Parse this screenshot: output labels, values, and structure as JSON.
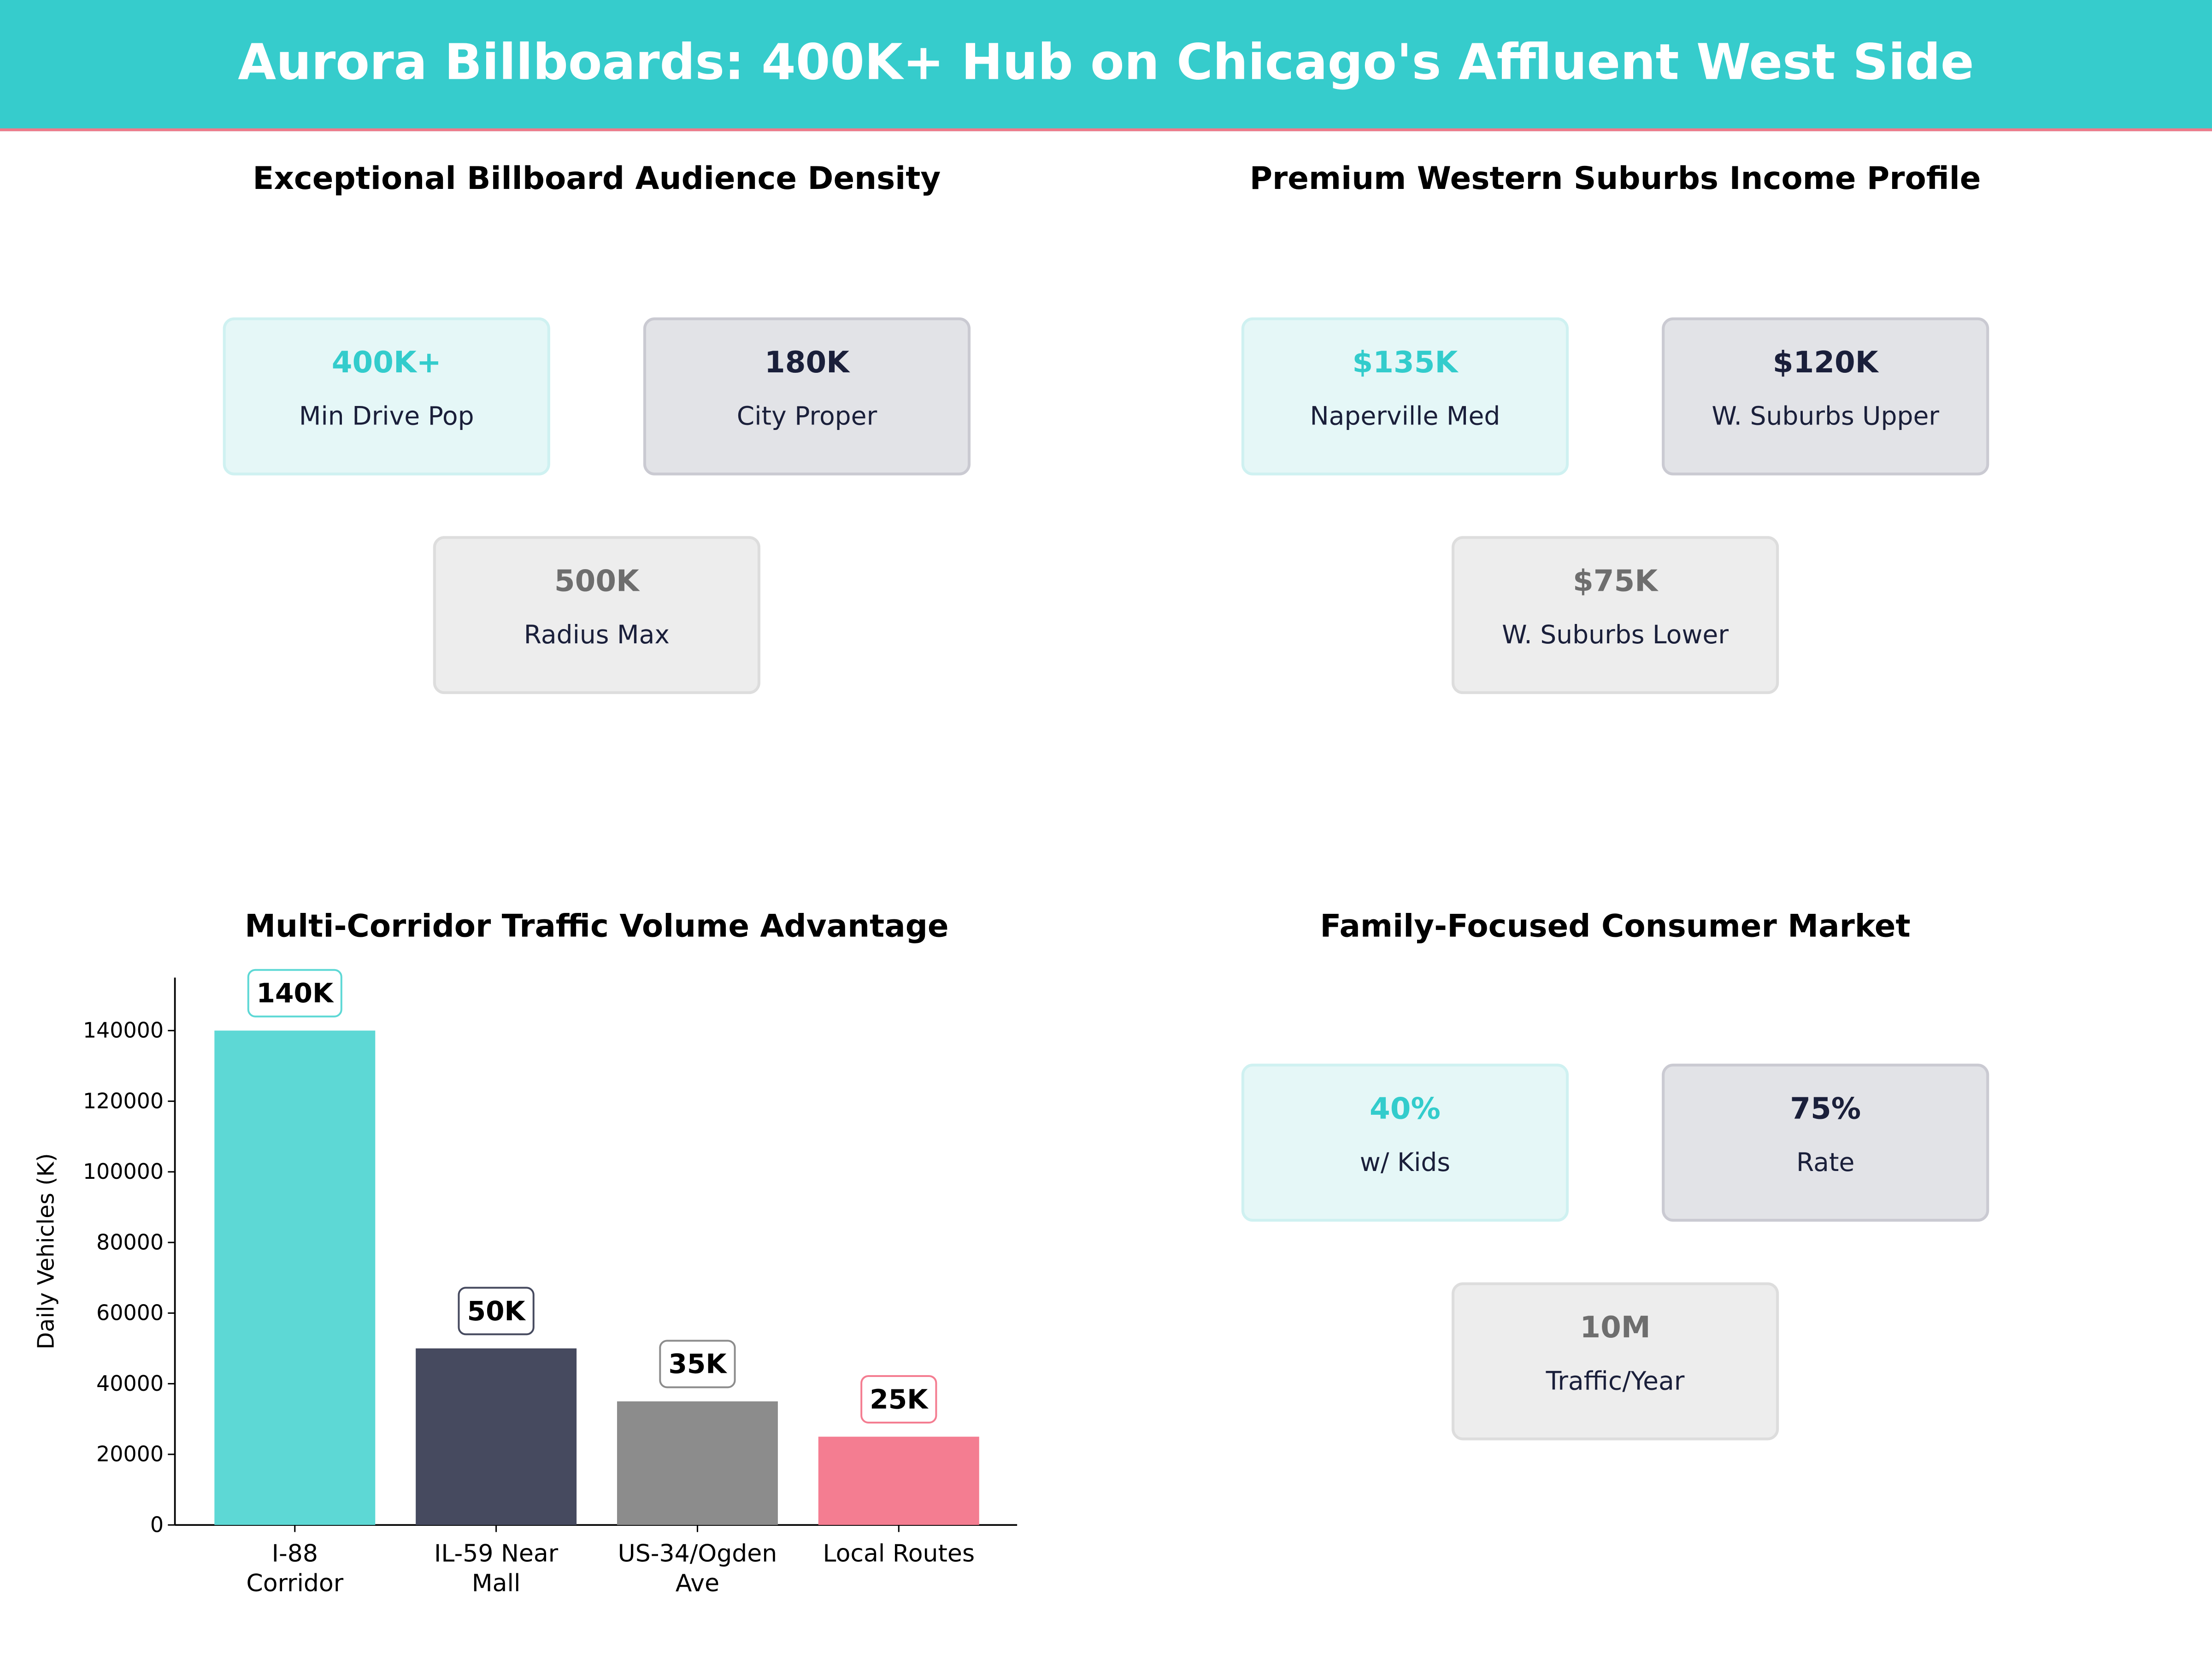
{
  "header": {
    "title": "Aurora Billboards: 400K+ Hub on Chicago's Affluent West Side",
    "accent": "#36cccc",
    "rule_color": "#f07a8a"
  },
  "panels": [
    {
      "title": "Exceptional Billboard Audience Density",
      "cards": [
        {
          "value": "400K+",
          "label": "Min Drive Pop"
        },
        {
          "value": "180K",
          "label": "City Proper"
        },
        {
          "value": "500K",
          "label": "Radius Max"
        }
      ]
    },
    {
      "title": "Premium Western Suburbs Income Profile",
      "cards": [
        {
          "value": "$135K",
          "label": "Naperville Med"
        },
        {
          "value": "$120K",
          "label": "W. Suburbs Upper"
        },
        {
          "value": "$75K",
          "label": "W. Suburbs Lower"
        }
      ]
    },
    {
      "title": "Family-Focused Consumer Market",
      "cards": [
        {
          "value": "40%",
          "label": "w/ Kids"
        },
        {
          "value": "75%",
          "label": "Rate"
        },
        {
          "value": "10M",
          "label": "Traffic/Year"
        }
      ]
    }
  ],
  "chart_data": {
    "type": "bar",
    "title": "Multi-Corridor Traffic Volume Advantage",
    "xlabel": "",
    "ylabel": "Daily Vehicles (K)",
    "categories": [
      "I-88\nCorridor",
      "IL-59 Near\nMall",
      "US-34/Ogden\nAve",
      "Local Routes"
    ],
    "values": [
      140000,
      50000,
      35000,
      25000
    ],
    "data_labels": [
      "140K",
      "50K",
      "35K",
      "25K"
    ],
    "colors": [
      "#5dd8d5",
      "#464a5f",
      "#8c8c8c",
      "#f47d91"
    ],
    "yticks": [
      0,
      20000,
      40000,
      60000,
      80000,
      100000,
      120000,
      140000
    ],
    "ylim": [
      0,
      155000
    ],
    "grid": false
  }
}
